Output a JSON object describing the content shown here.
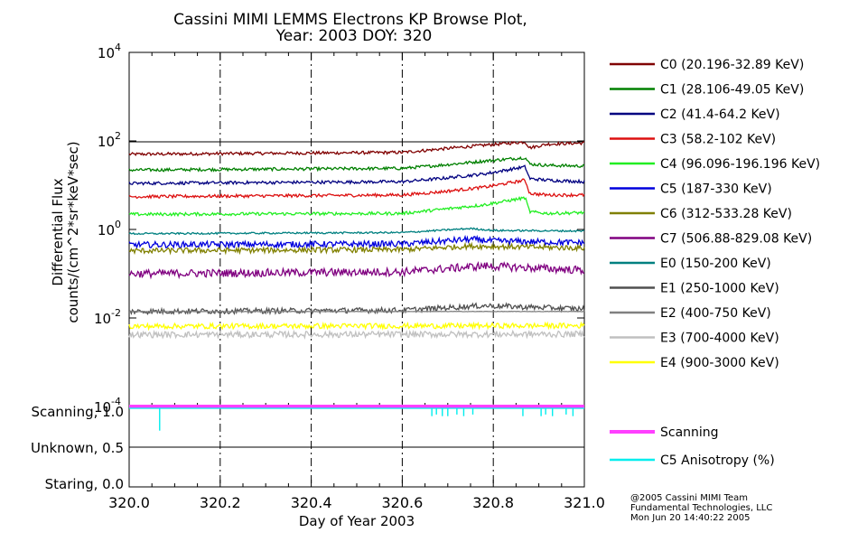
{
  "chart_data": {
    "type": "line",
    "title_line1": "Cassini MIMI LEMMS Electrons KP Browse Plot,",
    "title_line2": "Year: 2003 DOY: 320",
    "ylabel_line1": "Differential Flux",
    "ylabel_line2": "counts/(cm^2*sr*keV*sec)",
    "xlabel": "Day of Year 2003",
    "x_range": [
      320.0,
      321.0
    ],
    "x_ticks": [
      "320.0",
      "320.2",
      "320.4",
      "320.6",
      "320.8",
      "321.0"
    ],
    "x_tick_values": [
      320.0,
      320.2,
      320.4,
      320.6,
      320.8,
      321.0
    ],
    "y_log_range": [
      0.0001,
      10000.0
    ],
    "y_ticks": [
      {
        "mantissa": "10",
        "exp": "4",
        "value": 10000
      },
      {
        "mantissa": "10",
        "exp": "2",
        "value": 100
      },
      {
        "mantissa": "10",
        "exp": "0",
        "value": 1
      },
      {
        "mantissa": "10",
        "exp": "-2",
        "value": 0.01
      },
      {
        "mantissa": "10",
        "exp": "-4",
        "value": 0.0001
      }
    ],
    "series": [
      {
        "name": "C0 (20.196-32.89 KeV)",
        "color": "#800000",
        "base": 50,
        "x": [
          320.0,
          320.6,
          320.68,
          320.78,
          320.87,
          320.88,
          320.92,
          321.0
        ],
        "y": [
          50,
          55,
          65,
          80,
          95,
          70,
          85,
          90
        ],
        "noise": 0.035
      },
      {
        "name": "C1 (28.106-49.05 KeV)",
        "color": "#008000",
        "base": 22,
        "x": [
          320.0,
          320.6,
          320.68,
          320.78,
          320.87,
          320.88,
          320.92,
          321.0
        ],
        "y": [
          22,
          24,
          28,
          35,
          42,
          30,
          28,
          27
        ],
        "noise": 0.035
      },
      {
        "name": "C2 (41.4-64.2 KeV)",
        "color": "#000080",
        "base": 11,
        "x": [
          320.0,
          320.6,
          320.68,
          320.78,
          320.87,
          320.88,
          320.92,
          321.0
        ],
        "y": [
          11,
          12,
          14,
          18,
          26,
          14,
          13,
          12
        ],
        "noise": 0.035
      },
      {
        "name": "C3 (58.2-102 KeV)",
        "color": "#dd1010",
        "base": 5.5,
        "x": [
          320.0,
          320.6,
          320.68,
          320.78,
          320.87,
          320.88,
          320.92,
          321.0
        ],
        "y": [
          5.5,
          6,
          7,
          9,
          13,
          6.5,
          6,
          6
        ],
        "noise": 0.035
      },
      {
        "name": "C4 (96.096-196.196 KeV)",
        "color": "#22ee22",
        "base": 2.2,
        "x": [
          320.0,
          320.6,
          320.68,
          320.78,
          320.87,
          320.88,
          320.92,
          321.0
        ],
        "y": [
          2.2,
          2.3,
          2.8,
          3.6,
          5.2,
          2.5,
          2.3,
          2.4
        ],
        "noise": 0.035
      },
      {
        "name": "C5 (187-330 KeV)",
        "color": "#0000dd",
        "base": 0.45,
        "x": [
          320.0,
          320.6,
          320.75,
          320.8,
          321.0
        ],
        "y": [
          0.45,
          0.47,
          0.6,
          0.55,
          0.5
        ],
        "noise": 0.07
      },
      {
        "name": "C6 (312-533.28 KeV)",
        "color": "#808000",
        "base": 0.33,
        "x": [
          320.0,
          320.6,
          320.75,
          321.0
        ],
        "y": [
          0.33,
          0.35,
          0.42,
          0.38
        ],
        "noise": 0.06
      },
      {
        "name": "C7 (506.88-829.08 KeV)",
        "color": "#800080",
        "base": 0.1,
        "x": [
          320.0,
          320.6,
          320.78,
          321.0
        ],
        "y": [
          0.1,
          0.11,
          0.15,
          0.12
        ],
        "noise": 0.09
      },
      {
        "name": "E0 (150-200 KeV)",
        "color": "#008080",
        "base": 0.8,
        "x": [
          320.0,
          320.6,
          320.75,
          320.8,
          321.0
        ],
        "y": [
          0.8,
          0.85,
          1.05,
          0.95,
          0.92
        ],
        "noise": 0.02
      },
      {
        "name": "E1 (250-1000 KeV)",
        "color": "#505050",
        "base": 0.014,
        "x": [
          320.0,
          320.6,
          320.78,
          321.0
        ],
        "y": [
          0.014,
          0.015,
          0.019,
          0.016
        ],
        "noise": 0.06
      },
      {
        "name": "E2 (400-750 KeV)",
        "color": "#808080",
        "base": 0.014,
        "x": [
          320.0,
          321.0
        ],
        "y": [
          0.014,
          0.014
        ],
        "noise": 0.005
      },
      {
        "name": "E3 (700-4000 KeV)",
        "color": "#c0c0c0",
        "base": 0.0042,
        "x": [
          320.0,
          321.0
        ],
        "y": [
          0.0042,
          0.0043
        ],
        "noise": 0.07
      },
      {
        "name": "E4 (900-3000 KeV)",
        "color": "#ffff00",
        "base": 0.0065,
        "x": [
          320.0,
          321.0
        ],
        "y": [
          0.0065,
          0.0067
        ],
        "noise": 0.06
      }
    ],
    "lower_panel": {
      "ylabels": [
        "Scanning, 1.0",
        "Unknown, 0.5",
        "Staring, 0.0"
      ],
      "y_values": [
        1.0,
        0.5,
        0.0
      ],
      "scanning": {
        "name": "Scanning",
        "color": "#ff40ff",
        "value": 1.0
      },
      "anisotropy": {
        "name": "C5 Anisotropy (%)",
        "color": "#00eeee",
        "baseline": 1.0,
        "dips_x": [
          320.067,
          320.665,
          320.675,
          320.688,
          320.7,
          320.72,
          320.735,
          320.755,
          320.865,
          320.905,
          320.915,
          320.93,
          320.96,
          320.975
        ],
        "dips_y": [
          0.7,
          0.88,
          0.9,
          0.88,
          0.88,
          0.9,
          0.88,
          0.9,
          0.88,
          0.88,
          0.9,
          0.88,
          0.9,
          0.88
        ]
      }
    }
  },
  "footer": {
    "line1": "@2005 Cassini MIMI Team",
    "line2": "Fundamental Technologies, LLC",
    "line3": "Mon Jun 20 14:40:22 2005"
  }
}
